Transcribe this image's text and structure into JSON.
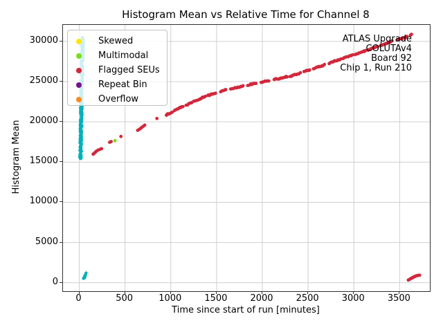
{
  "chart_data": {
    "type": "scatter",
    "title": "Histogram Mean vs Relative Time for Channel 8",
    "xlabel": "Time since start of run [minutes]",
    "ylabel": "Histogram Mean",
    "xlim": [
      -178,
      3830
    ],
    "ylim": [
      -1050,
      32050
    ],
    "xticks": [
      0,
      500,
      1000,
      1500,
      2000,
      2500,
      3000,
      3500
    ],
    "yticks": [
      0,
      5000,
      10000,
      15000,
      20000,
      25000,
      30000
    ],
    "grid": true,
    "grid_color": "#cfcfcf",
    "legend_position": "upper left",
    "legend": [
      {
        "label": "Skewed",
        "color": "#ffe600"
      },
      {
        "label": "Multimodal",
        "color": "#7bdc1e"
      },
      {
        "label": "Flagged SEUs",
        "color": "#d2283c"
      },
      {
        "label": "Repeat Bin",
        "color": "#76128a"
      },
      {
        "label": "Overflow",
        "color": "#fb8c1e"
      }
    ],
    "annotation": {
      "align": "right",
      "lines": [
        "ATLAS Upgrade",
        "COLUTAv4",
        "Board 92",
        "Chip 1, Run 210"
      ]
    },
    "series": [
      {
        "name": "normal-band",
        "color": "#00b1bc",
        "marker_r": 2.1,
        "band": {
          "mean_min": 15350,
          "mean_max": 30550,
          "t_center_min": 13,
          "t_center_max": 36,
          "t_jitter": 11,
          "points": 340
        },
        "low_cluster": [
          [
            45,
            520
          ],
          [
            50,
            640
          ],
          [
            56,
            760
          ],
          [
            61,
            880
          ],
          [
            66,
            1010
          ],
          [
            71,
            1130
          ],
          [
            75,
            1230
          ],
          [
            58,
            590
          ],
          [
            63,
            720
          ],
          [
            68,
            940
          ]
        ]
      },
      {
        "name": "flagged-seus-curve",
        "color": "#d2283c",
        "marker_r": 2.4,
        "sparse_points": [
          [
            152,
            15980
          ],
          [
            161,
            16080
          ],
          [
            170,
            16170
          ],
          [
            180,
            16270
          ],
          [
            192,
            16390
          ],
          [
            206,
            16500
          ],
          [
            228,
            16590
          ],
          [
            243,
            16660
          ],
          [
            332,
            17460
          ],
          [
            348,
            17550
          ],
          [
            455,
            18180
          ],
          [
            638,
            18950
          ],
          [
            655,
            19060
          ],
          [
            668,
            19170
          ],
          [
            682,
            19300
          ],
          [
            698,
            19440
          ],
          [
            715,
            19590
          ],
          [
            848,
            20420
          ]
        ],
        "keypoints": [
          [
            950,
            20860
          ],
          [
            1000,
            21120
          ],
          [
            1060,
            21480
          ],
          [
            1120,
            21860
          ],
          [
            1180,
            22140
          ],
          [
            1240,
            22470
          ],
          [
            1300,
            22760
          ],
          [
            1360,
            23060
          ],
          [
            1420,
            23320
          ],
          [
            1500,
            23620
          ],
          [
            1600,
            23960
          ],
          [
            1700,
            24210
          ],
          [
            1800,
            24450
          ],
          [
            1900,
            24710
          ],
          [
            2000,
            24960
          ],
          [
            2100,
            25190
          ],
          [
            2200,
            25410
          ],
          [
            2300,
            25660
          ],
          [
            2400,
            26010
          ],
          [
            2500,
            26390
          ],
          [
            2600,
            26770
          ],
          [
            2700,
            27160
          ],
          [
            2800,
            27560
          ],
          [
            2900,
            27960
          ],
          [
            3000,
            28330
          ],
          [
            3100,
            28730
          ],
          [
            3200,
            29130
          ],
          [
            3300,
            29530
          ],
          [
            3400,
            29960
          ],
          [
            3490,
            30270
          ],
          [
            3560,
            30460
          ],
          [
            3620,
            30800
          ],
          [
            3645,
            31000
          ]
        ],
        "end_cluster": [
          [
            3595,
            330
          ],
          [
            3608,
            420
          ],
          [
            3620,
            510
          ],
          [
            3632,
            590
          ],
          [
            3640,
            600
          ],
          [
            3645,
            670
          ],
          [
            3657,
            740
          ],
          [
            3663,
            760
          ],
          [
            3668,
            800
          ],
          [
            3680,
            850
          ],
          [
            3692,
            890
          ],
          [
            3705,
            920
          ],
          [
            3718,
            940
          ]
        ]
      },
      {
        "name": "multimodal-points",
        "color": "#7bdc1e",
        "marker_r": 2.5,
        "points": [
          [
            390,
            17660
          ]
        ]
      },
      {
        "name": "skewed-points",
        "color": "#ffe600",
        "marker_r": 2.5,
        "points": []
      },
      {
        "name": "repeat-bin-points",
        "color": "#76128a",
        "marker_r": 2.5,
        "points": []
      },
      {
        "name": "overflow-points",
        "color": "#fb8c1e",
        "marker_r": 2.5,
        "points": []
      }
    ]
  }
}
